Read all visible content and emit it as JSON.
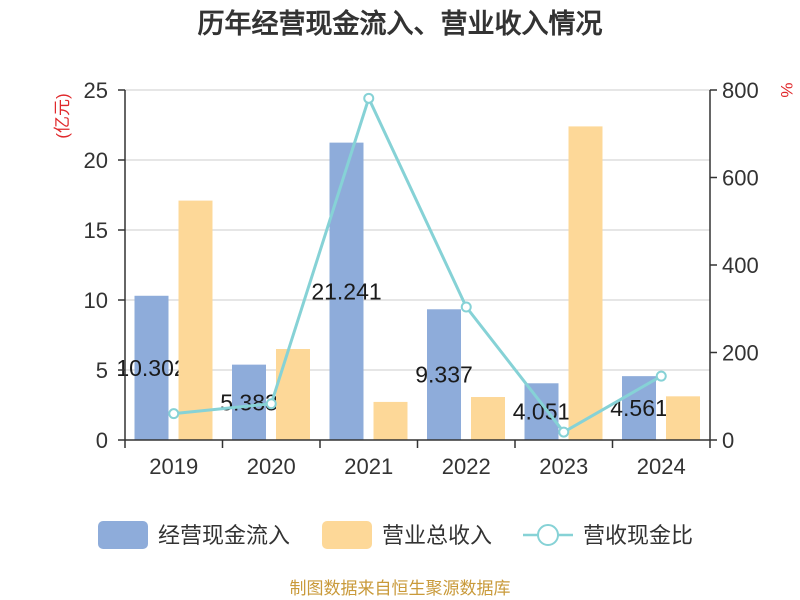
{
  "footer": "制图数据来自恒生聚源数据库",
  "colors": {
    "background": "#ffffff",
    "title_text": "#333333",
    "axis_text": "#333333",
    "axis_line": "#333333",
    "grid": "#cccccc",
    "axis_name": "#e0282b",
    "data_label": "#1a1a1a",
    "legend_text": "#333333",
    "footer": "#c99a3a"
  },
  "chart_data": {
    "type": "bar",
    "title": "历年经营现金流入、营业收入情况",
    "categories": [
      "2019",
      "2020",
      "2021",
      "2022",
      "2023",
      "2024"
    ],
    "series": [
      {
        "name": "经营现金流入",
        "type": "bar",
        "axis": "left",
        "color": "#8eacda",
        "values": [
          10.302,
          5.383,
          21.241,
          9.337,
          4.051,
          4.561
        ],
        "labels": [
          "10.302",
          "5.383",
          "21.241",
          "9.337",
          "4.051",
          "4.561"
        ]
      },
      {
        "name": "营业总收入",
        "type": "bar",
        "axis": "left",
        "color": "#fdd898",
        "values": [
          17.1,
          6.5,
          2.72,
          3.07,
          22.4,
          3.12
        ]
      },
      {
        "name": "营收现金比",
        "type": "line",
        "axis": "right",
        "color": "#86d2d6",
        "values": [
          60.2,
          82.8,
          781,
          304,
          18.1,
          146
        ]
      }
    ],
    "ylabel": "(亿元)",
    "y2label": "%",
    "ylim": [
      0,
      25
    ],
    "y2lim": [
      0,
      800
    ],
    "yticks": [
      "0",
      "5",
      "10",
      "15",
      "20",
      "25"
    ],
    "y2ticks": [
      "0",
      "200",
      "400",
      "600",
      "800"
    ],
    "grid": true,
    "legend": "bottom"
  }
}
